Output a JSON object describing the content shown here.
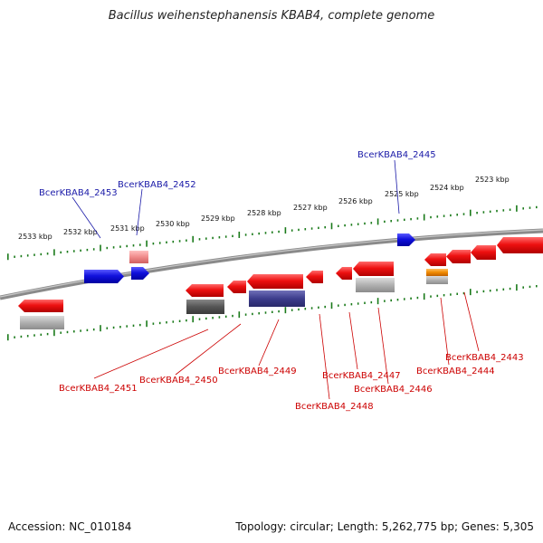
{
  "title": "Bacillus weihenstephanensis KBAB4, complete genome",
  "footer": {
    "accession": "Accession: NC_010184",
    "topology": "Topology: circular; Length: 5,262,775 bp; Genes: 5,305"
  },
  "colors": {
    "backbone": "#8a8a8a",
    "tick": "#1a7a1a",
    "cds": "#ee1111",
    "rna": "#1111dd",
    "gene_shadow": "#b0b0b0",
    "label_top": "#1a1aa8",
    "label_bottom": "#cc0000",
    "orange": "#f08a00",
    "navy": "#3c3c8c",
    "pink": "#f08a8a"
  },
  "ticks": [
    {
      "label": "2533 kbp"
    },
    {
      "label": "2532 kbp"
    },
    {
      "label": "2531 kbp"
    },
    {
      "label": "2530 kbp"
    },
    {
      "label": "2529 kbp"
    },
    {
      "label": "2528 kbp"
    },
    {
      "label": "2527 kbp"
    },
    {
      "label": "2526 kbp"
    },
    {
      "label": "2525 kbp"
    },
    {
      "label": "2524 kbp"
    },
    {
      "label": "2523 kbp"
    }
  ],
  "genes_top": [
    {
      "label": "BcerKBAB4_2453"
    },
    {
      "label": "BcerKBAB4_2452"
    },
    {
      "label": "BcerKBAB4_2445"
    }
  ],
  "genes_bottom": [
    {
      "label": "BcerKBAB4_2451"
    },
    {
      "label": "BcerKBAB4_2450"
    },
    {
      "label": "BcerKBAB4_2449"
    },
    {
      "label": "BcerKBAB4_2447"
    },
    {
      "label": "BcerKBAB4_2448"
    },
    {
      "label": "BcerKBAB4_2446"
    },
    {
      "label": "BcerKBAB4_2443"
    },
    {
      "label": "BcerKBAB4_2444"
    }
  ]
}
